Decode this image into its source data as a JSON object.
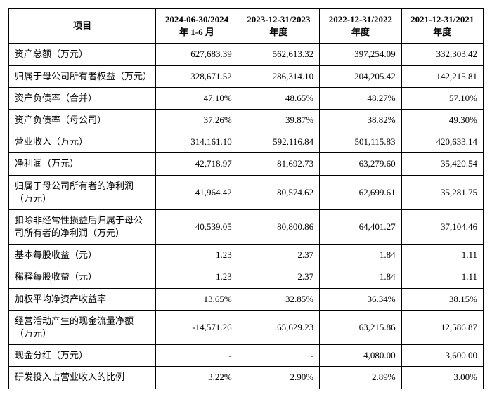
{
  "table": {
    "type": "table",
    "background_color": "#ffffff",
    "border_color": "#000000",
    "font_family": "SimSun",
    "header_fontsize": 13,
    "cell_fontsize": 13,
    "label_col_width_pct": 31,
    "value_col_width_pct": 17.25,
    "value_align": "right",
    "label_align": "left",
    "columns": [
      "项目",
      "2024-06-30/2024 年 1-6 月",
      "2023-12-31/2023 年度",
      "2022-12-31/2022 年度",
      "2021-12-31/2021 年度"
    ],
    "rows": [
      {
        "label": "资产总额（万元）",
        "values": [
          "627,683.39",
          "562,613.32",
          "397,254.09",
          "332,303.42"
        ]
      },
      {
        "label": "归属于母公司所有者权益（万元）",
        "values": [
          "328,671.52",
          "286,314.10",
          "204,205.42",
          "142,215.81"
        ]
      },
      {
        "label": "资产负债率（合并）",
        "values": [
          "47.10%",
          "48.65%",
          "48.27%",
          "57.10%"
        ]
      },
      {
        "label": "资产负债率（母公司）",
        "values": [
          "37.26%",
          "39.87%",
          "38.82%",
          "49.30%"
        ]
      },
      {
        "label": "营业收入（万元）",
        "values": [
          "314,161.10",
          "592,116.84",
          "501,115.83",
          "420,633.14"
        ]
      },
      {
        "label": "净利润（万元）",
        "values": [
          "42,718.97",
          "81,692.73",
          "63,279.60",
          "35,420.54"
        ]
      },
      {
        "label": "归属于母公司所有者的净利润（万元）",
        "values": [
          "41,964.42",
          "80,574.62",
          "62,699.61",
          "35,281.75"
        ]
      },
      {
        "label": "扣除非经常性损益后归属于母公司所有者的净利润（万元）",
        "values": [
          "40,539.05",
          "80,800.86",
          "64,401.27",
          "37,104.46"
        ]
      },
      {
        "label": "基本每股收益（元）",
        "values": [
          "1.23",
          "2.37",
          "1.84",
          "1.11"
        ]
      },
      {
        "label": "稀释每股收益（元）",
        "values": [
          "1.23",
          "2.37",
          "1.84",
          "1.11"
        ]
      },
      {
        "label": "加权平均净资产收益率",
        "values": [
          "13.65%",
          "32.85%",
          "36.34%",
          "38.15%"
        ]
      },
      {
        "label": "经营活动产生的现金流量净额（万元）",
        "values": [
          "-14,571.26",
          "65,629.23",
          "63,215.86",
          "12,586.87"
        ]
      },
      {
        "label": "现金分红（万元）",
        "values": [
          "-",
          "-",
          "4,080.00",
          "3,600.00"
        ]
      },
      {
        "label": "研发投入占营业收入的比例",
        "values": [
          "3.22%",
          "2.90%",
          "2.89%",
          "3.00%"
        ]
      }
    ]
  }
}
